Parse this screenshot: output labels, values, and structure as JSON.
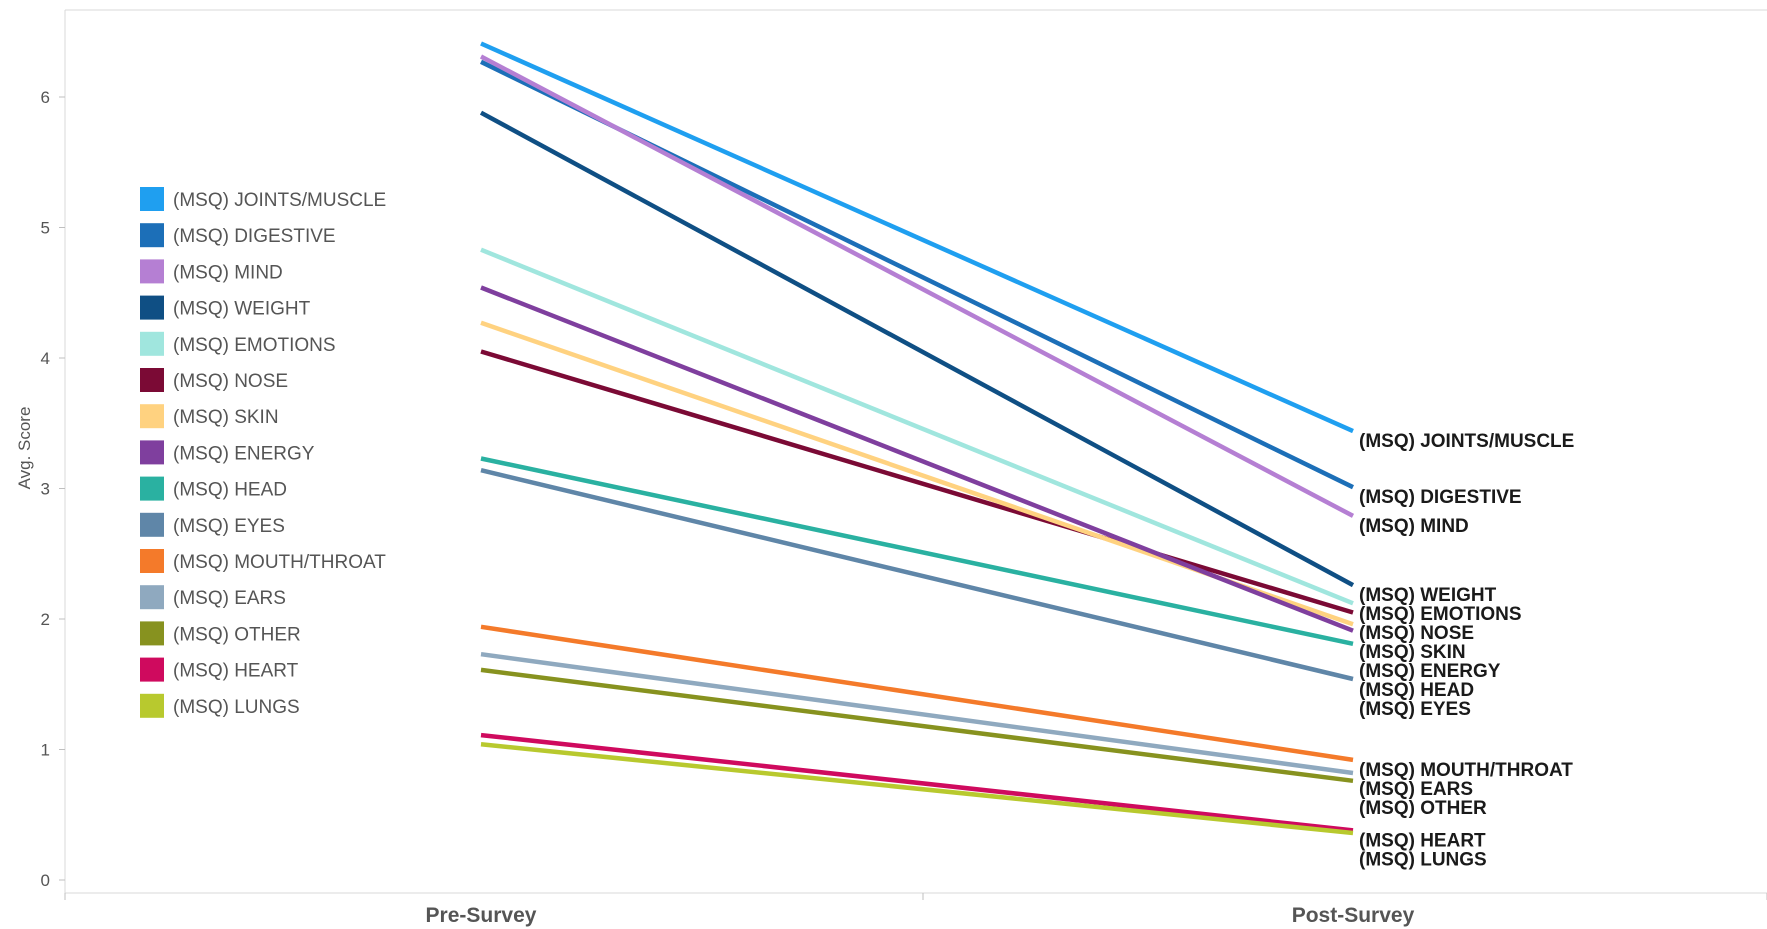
{
  "chart_data": {
    "type": "line",
    "categories": [
      "Pre-Survey",
      "Post-Survey"
    ],
    "ylabel": "Avg. Score",
    "xlabel": "",
    "ylim": [
      0,
      6.75
    ],
    "yticks": [
      0,
      1,
      2,
      3,
      4,
      5,
      6
    ],
    "grid": false,
    "legend_position": "left",
    "series": [
      {
        "name": "(MSQ) JOINTS/MUSCLE",
        "color": "#1f9ff0",
        "values": [
          6.41,
          3.44
        ]
      },
      {
        "name": "(MSQ) DIGESTIVE",
        "color": "#1c6fb8",
        "values": [
          6.27,
          3.01
        ]
      },
      {
        "name": "(MSQ) MIND",
        "color": "#b57fd3",
        "values": [
          6.31,
          2.79
        ]
      },
      {
        "name": "(MSQ) WEIGHT",
        "color": "#0f4f84",
        "values": [
          5.88,
          2.26
        ]
      },
      {
        "name": "(MSQ) EMOTIONS",
        "color": "#a0e6de",
        "values": [
          4.83,
          2.12
        ]
      },
      {
        "name": "(MSQ) NOSE",
        "color": "#7b0a35",
        "values": [
          4.05,
          2.05
        ]
      },
      {
        "name": "(MSQ) SKIN",
        "color": "#ffd280",
        "values": [
          4.27,
          1.96
        ]
      },
      {
        "name": "(MSQ) ENERGY",
        "color": "#7f3f9e",
        "values": [
          4.54,
          1.91
        ]
      },
      {
        "name": "(MSQ) HEAD",
        "color": "#2ab1a1",
        "values": [
          3.23,
          1.81
        ]
      },
      {
        "name": "(MSQ) EYES",
        "color": "#5f86a8",
        "values": [
          3.14,
          1.54
        ]
      },
      {
        "name": "(MSQ) MOUTH/THROAT",
        "color": "#f47a2a",
        "values": [
          1.94,
          0.92
        ]
      },
      {
        "name": "(MSQ) EARS",
        "color": "#8fa9bf",
        "values": [
          1.73,
          0.82
        ]
      },
      {
        "name": "(MSQ) OTHER",
        "color": "#87921f",
        "values": [
          1.61,
          0.76
        ]
      },
      {
        "name": "(MSQ) HEART",
        "color": "#cf0a5e",
        "values": [
          1.11,
          0.38
        ]
      },
      {
        "name": "(MSQ) LUNGS",
        "color": "#b8c92e",
        "values": [
          1.04,
          0.36
        ]
      }
    ]
  }
}
